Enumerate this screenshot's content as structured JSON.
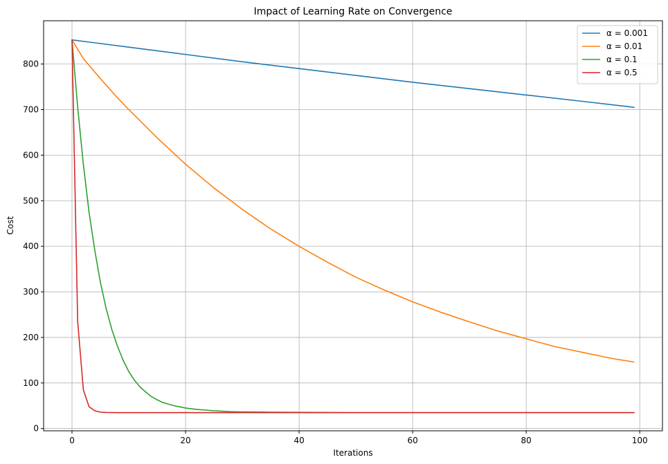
{
  "chart_data": {
    "type": "line",
    "title": "Impact of Learning Rate on Convergence",
    "xlabel": "Iterations",
    "ylabel": "Cost",
    "xlim": [
      -5,
      104
    ],
    "ylim": [
      -5,
      895
    ],
    "xticks": [
      0,
      20,
      40,
      60,
      80,
      100
    ],
    "yticks": [
      0,
      100,
      200,
      300,
      400,
      500,
      600,
      700,
      800
    ],
    "grid": true,
    "legend_position": "top-right",
    "series": [
      {
        "name": "α = 0.001",
        "color": "#1f77b4",
        "x": [
          0,
          10,
          20,
          30,
          40,
          50,
          60,
          70,
          80,
          90,
          99
        ],
        "y": [
          853,
          837,
          821,
          805,
          790,
          775,
          760,
          746,
          732,
          718,
          705
        ]
      },
      {
        "name": "α = 0.01",
        "color": "#ff7f0e",
        "x": [
          0,
          2,
          5,
          8,
          10,
          15,
          20,
          25,
          30,
          35,
          40,
          45,
          50,
          55,
          60,
          65,
          70,
          75,
          80,
          85,
          90,
          95,
          99
        ],
        "y": [
          853,
          812,
          768,
          726,
          700,
          638,
          580,
          528,
          481,
          438,
          400,
          365,
          332,
          304,
          278,
          255,
          234,
          214,
          197,
          180,
          167,
          154,
          146
        ]
      },
      {
        "name": "α = 0.1",
        "color": "#2ca02c",
        "x": [
          0,
          1,
          2,
          3,
          4,
          5,
          6,
          7,
          8,
          9,
          10,
          11,
          12,
          13,
          14,
          15,
          16,
          18,
          20,
          22,
          25,
          28,
          30,
          35,
          40,
          50,
          60,
          70,
          80,
          90,
          99
        ],
        "y": [
          853,
          705,
          580,
          475,
          392,
          321,
          264,
          218,
          181,
          150,
          125,
          106,
          91,
          80,
          70,
          63,
          57,
          50,
          45,
          42,
          39,
          37,
          36.5,
          36,
          35.5,
          35,
          35,
          35,
          35,
          35,
          35
        ]
      },
      {
        "name": "α = 0.5",
        "color": "#d62728",
        "x": [
          0,
          1,
          2,
          3,
          4,
          5,
          6,
          8,
          10,
          20,
          40,
          60,
          80,
          99
        ],
        "y": [
          853,
          235,
          85,
          48,
          39,
          36,
          35.3,
          35,
          35,
          35,
          35,
          35,
          35,
          35
        ]
      }
    ]
  }
}
